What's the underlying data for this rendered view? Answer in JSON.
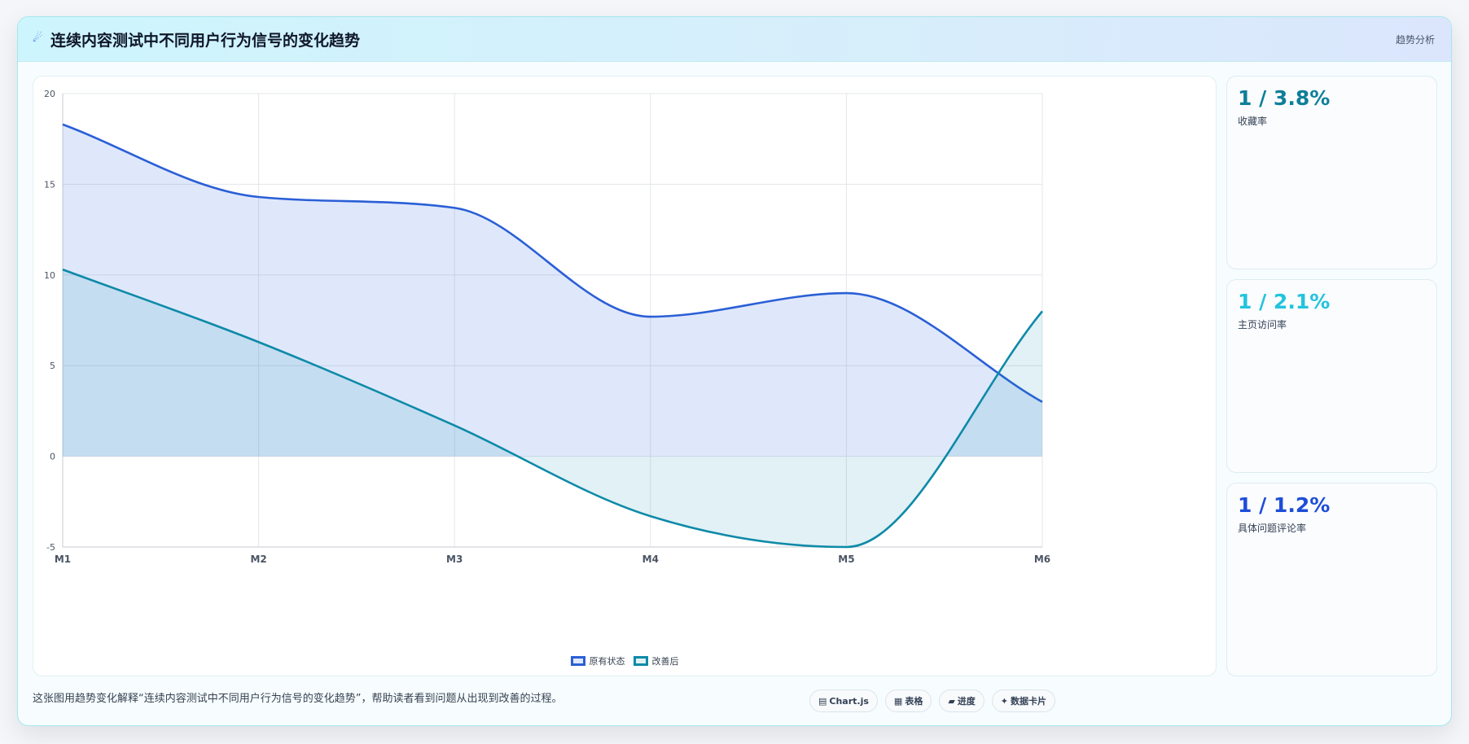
{
  "header": {
    "logo_icon": "comet-icon",
    "logo_glyph": "☄",
    "title": "连续内容测试中不同用户行为信号的变化趋势",
    "tag": "趋势分析"
  },
  "chart_data": {
    "type": "line",
    "filled": true,
    "smooth": true,
    "categories": [
      "M1",
      "M2",
      "M3",
      "M4",
      "M5",
      "M6"
    ],
    "series": [
      {
        "name": "原有状态",
        "values": [
          18.3,
          14.3,
          13.7,
          7.7,
          9.0,
          3.0
        ],
        "color": "#2a5fd6",
        "fill": "rgba(59,110,230,0.16)"
      },
      {
        "name": "改善后",
        "values": [
          10.3,
          6.3,
          1.7,
          -3.3,
          -5.0,
          8.0
        ],
        "color": "#0e8aa8",
        "fill": "rgba(20,150,180,0.13)"
      }
    ],
    "ylim": [
      -5,
      20
    ],
    "yticks": [
      20,
      15,
      10,
      5,
      0,
      -5
    ],
    "grid": true,
    "legend": "bottom"
  },
  "stats": [
    {
      "value": "1 / 3.8%",
      "label": "收藏率",
      "color": "#0e7f99"
    },
    {
      "value": "1 / 2.1%",
      "label": "主页访问率",
      "color": "#22c4dd"
    },
    {
      "value": "1 / 1.2%",
      "label": "具体问题评论率",
      "color": "#1d4ed8"
    }
  ],
  "footer": {
    "description": "这张图用趋势变化解释“连续内容测试中不同用户行为信号的变化趋势”，帮助读者看到问题从出现到改善的过程。",
    "pills": [
      {
        "icon": "chart-icon",
        "glyph": "▤",
        "label": "Chart.js"
      },
      {
        "icon": "table-icon",
        "glyph": "▦",
        "label": "表格"
      },
      {
        "icon": "progress-icon",
        "glyph": "▰",
        "label": "进度"
      },
      {
        "icon": "sparkle-icon",
        "glyph": "✦",
        "label": "数据卡片"
      }
    ]
  }
}
